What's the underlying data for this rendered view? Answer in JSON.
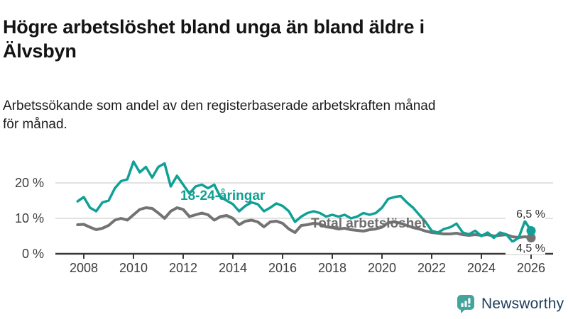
{
  "title": "Högre arbetslöshet bland unga än bland äldre i\nÄlvsbyn",
  "subtitle": "Arbetssökande som andel av den registerbaserade arbetskraften månad\nför månad.",
  "colors": {
    "young_line": "#10a095",
    "total_line": "#737373",
    "grid": "#d9d9d9",
    "axis": "#383838",
    "tick_text": "#3d3d3d",
    "end_label_text": "#2e2e2e",
    "logo_teal": "#43a49c",
    "logo_navy": "#1e3d5b"
  },
  "chart_data": {
    "type": "line",
    "title": "Högre arbetslöshet bland unga än bland äldre i Älvsbyn",
    "subtitle": "Arbetssökande som andel av den registerbaserade arbetskraften månad för månad.",
    "xlabel": "",
    "ylabel": "",
    "ylim": [
      0,
      28
    ],
    "xlim": [
      2007.6,
      2026.9
    ],
    "grid": "horizontal",
    "legend": "inline-labels",
    "unit": "%",
    "x": [
      2007.75,
      2008,
      2008.25,
      2008.5,
      2008.75,
      2009,
      2009.25,
      2009.5,
      2009.75,
      2010,
      2010.25,
      2010.5,
      2010.75,
      2011,
      2011.25,
      2011.5,
      2011.75,
      2012,
      2012.25,
      2012.5,
      2012.75,
      2013,
      2013.25,
      2013.5,
      2013.75,
      2014,
      2014.25,
      2014.5,
      2014.75,
      2015,
      2015.25,
      2015.5,
      2015.75,
      2016,
      2016.25,
      2016.5,
      2016.75,
      2017,
      2017.25,
      2017.5,
      2017.75,
      2018,
      2018.25,
      2018.5,
      2018.75,
      2019,
      2019.25,
      2019.5,
      2019.75,
      2020,
      2020.25,
      2020.5,
      2020.75,
      2021,
      2021.25,
      2021.5,
      2021.75,
      2022,
      2022.25,
      2022.5,
      2022.75,
      2023,
      2023.25,
      2023.5,
      2023.75,
      2024,
      2024.25,
      2024.5,
      2024.75,
      2025,
      2025.25,
      2025.5,
      2025.75,
      2026
    ],
    "series": [
      {
        "name": "Total arbetslöshet",
        "color_key": "total_line",
        "stroke_width": 4,
        "end_label": "4,5 %",
        "end_value": 4.5,
        "values": [
          8.2,
          8.3,
          7.5,
          6.8,
          7.2,
          8,
          9.5,
          10,
          9.5,
          11,
          12.5,
          13,
          12.8,
          11.5,
          10,
          12,
          13,
          12.5,
          10.5,
          11,
          11.5,
          11,
          9.5,
          10.5,
          10.8,
          10,
          8.2,
          9.2,
          9.5,
          9,
          7.6,
          9,
          9.2,
          8.6,
          7,
          6,
          8,
          8.2,
          8.6,
          8.4,
          7.6,
          7.4,
          7,
          7.2,
          6.8,
          6.6,
          6.4,
          6.8,
          7,
          7.5,
          8.8,
          9,
          8.6,
          8,
          7.4,
          7,
          6.4,
          6,
          5.8,
          5.6,
          5.6,
          5.8,
          5.4,
          5.2,
          5.4,
          5.2,
          5.4,
          5,
          5.2,
          5.4,
          4.8,
          4.6,
          4.8,
          4.5
        ]
      },
      {
        "name": "18-24-åringar",
        "color_key": "young_line",
        "stroke_width": 3.5,
        "end_label": "6,5 %",
        "end_value": 6.5,
        "values": [
          14.8,
          16,
          13,
          12,
          14.5,
          15,
          18.5,
          20.5,
          21,
          26,
          23,
          24.5,
          21.5,
          24.5,
          25.5,
          19,
          22,
          19.5,
          17,
          19,
          19.5,
          18.5,
          19.5,
          16,
          15,
          14,
          12,
          13.5,
          14.5,
          14,
          12,
          13,
          14.2,
          13.5,
          12,
          9,
          10.5,
          11.5,
          12,
          11.5,
          10.5,
          11,
          10.5,
          11,
          10,
          10.5,
          11.5,
          11,
          11.5,
          13,
          15.5,
          16,
          16.3,
          14.5,
          13,
          11,
          9,
          6.5,
          6,
          7,
          7.5,
          8.5,
          6,
          5.5,
          6.5,
          5,
          6,
          4.5,
          6,
          5.5,
          3.4,
          4.5,
          9.2,
          6.5
        ]
      }
    ],
    "y_ticks": [
      {
        "value": 0,
        "label": "0 %"
      },
      {
        "value": 10,
        "label": "10 %"
      },
      {
        "value": 20,
        "label": "20 %"
      }
    ],
    "x_ticks": [
      {
        "value": 2008,
        "label": "2008"
      },
      {
        "value": 2010,
        "label": "2010"
      },
      {
        "value": 2012,
        "label": "2012"
      },
      {
        "value": 2014,
        "label": "2014"
      },
      {
        "value": 2016,
        "label": "2016"
      },
      {
        "value": 2018,
        "label": "2018"
      },
      {
        "value": 2020,
        "label": "2020"
      },
      {
        "value": 2022,
        "label": "2022"
      },
      {
        "value": 2024,
        "label": "2024"
      },
      {
        "value": 2026,
        "label": "2026"
      }
    ]
  },
  "annotations": {
    "young_series_label": "18-24-åringar",
    "total_series_label": "Total arbetslöshet",
    "young_end_value": "6,5 %",
    "total_end_value": "4,5 %"
  },
  "logo": {
    "text": "Newsworthy",
    "icon": "bar-chart-speech-bubble"
  }
}
